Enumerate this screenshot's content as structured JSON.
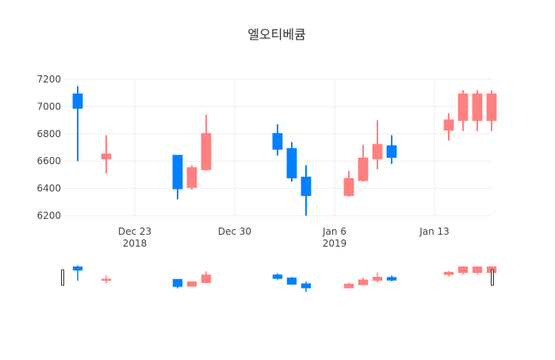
{
  "chart_data": {
    "type": "candlestick",
    "title": "엘오티베큠",
    "xlabel": "",
    "ylabel": "",
    "ylim": [
      6200,
      7200
    ],
    "yticks": [
      6200,
      6400,
      6600,
      6800,
      7000,
      7200
    ],
    "xticks": [
      {
        "date": "2018-12-23",
        "label": "Dec 23",
        "sublabel": "2018"
      },
      {
        "date": "2018-12-30",
        "label": "Dec 30",
        "sublabel": ""
      },
      {
        "date": "2019-01-06",
        "label": "Jan 6",
        "sublabel": "2019"
      },
      {
        "date": "2019-01-13",
        "label": "Jan 13",
        "sublabel": ""
      }
    ],
    "xrange": [
      "2018-12-18",
      "2019-01-17"
    ],
    "grid": true,
    "legend": "none",
    "rangeslider": true,
    "colors": {
      "increasing": "#FF8080",
      "decreasing": "#0080FF"
    },
    "x": [
      "2018-12-19",
      "2018-12-21",
      "2018-12-26",
      "2018-12-27",
      "2018-12-28",
      "2019-01-02",
      "2019-01-03",
      "2019-01-04",
      "2019-01-07",
      "2019-01-08",
      "2019-01-09",
      "2019-01-10",
      "2019-01-14",
      "2019-01-15",
      "2019-01-16",
      "2019-01-17"
    ],
    "open": [
      7090,
      6620,
      6640,
      6410,
      6540,
      6800,
      6690,
      6480,
      6350,
      6460,
      6620,
      6710,
      6830,
      6900,
      6900,
      6900
    ],
    "high": [
      7150,
      6790,
      6640,
      6570,
      6940,
      6870,
      6740,
      6570,
      6530,
      6720,
      6900,
      6790,
      6950,
      7120,
      7120,
      7120
    ],
    "low": [
      6600,
      6510,
      6320,
      6390,
      6530,
      6640,
      6450,
      6200,
      6340,
      6450,
      6540,
      6580,
      6750,
      6820,
      6820,
      6820
    ],
    "close": [
      6990,
      6650,
      6400,
      6550,
      6800,
      6690,
      6480,
      6350,
      6470,
      6620,
      6720,
      6630,
      6900,
      7090,
      7090,
      7090
    ]
  }
}
